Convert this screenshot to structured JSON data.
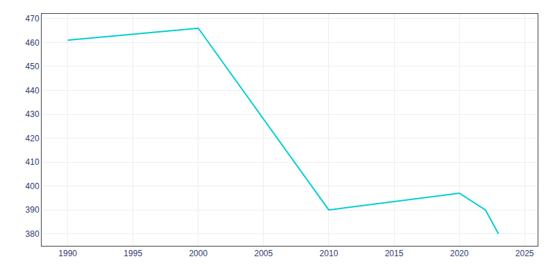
{
  "chart_data": {
    "type": "line",
    "x": [
      1990,
      2000,
      2010,
      2020,
      2022,
      2023
    ],
    "values": [
      461,
      466,
      390,
      397,
      390,
      380
    ],
    "color": "#00CED1",
    "xlim": [
      1988,
      2026
    ],
    "ylim": [
      375,
      472
    ],
    "xticks": [
      1990,
      1995,
      2000,
      2005,
      2010,
      2015,
      2020,
      2025
    ],
    "yticks": [
      380,
      390,
      400,
      410,
      420,
      430,
      440,
      450,
      460,
      470
    ],
    "grid": true
  }
}
